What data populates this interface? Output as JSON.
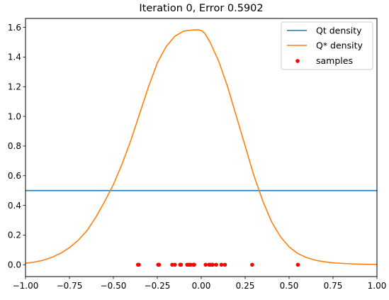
{
  "chart_data": {
    "type": "line",
    "title": "Iteration 0, Error 0.5902",
    "xlabel": "",
    "ylabel": "",
    "xlim": [
      -1.0,
      1.0
    ],
    "ylim": [
      -0.08,
      1.66
    ],
    "xticks": [
      -1.0,
      -0.75,
      -0.5,
      -0.25,
      0.0,
      0.25,
      0.5,
      0.75,
      1.0
    ],
    "xtick_labels": [
      "−1.00",
      "−0.75",
      "−0.50",
      "−0.25",
      "0.00",
      "0.25",
      "0.50",
      "0.75",
      "1.00"
    ],
    "yticks": [
      0.0,
      0.2,
      0.4,
      0.6,
      0.8,
      1.0,
      1.2,
      1.4,
      1.6
    ],
    "ytick_labels": [
      "0.0",
      "0.2",
      "0.4",
      "0.6",
      "0.8",
      "1.0",
      "1.2",
      "1.4",
      "1.6"
    ],
    "grid": false,
    "legend_position": "top-right",
    "series": [
      {
        "name": "Qt density",
        "kind": "line",
        "color": "#1f77b4",
        "x": [
          -1.0,
          1.0
        ],
        "y": [
          0.5,
          0.5
        ]
      },
      {
        "name": "Q* density",
        "kind": "line",
        "color": "#ff7f0e",
        "x": [
          -1.0,
          -0.95,
          -0.9,
          -0.85,
          -0.8,
          -0.75,
          -0.7,
          -0.65,
          -0.6,
          -0.55,
          -0.5,
          -0.45,
          -0.4,
          -0.35,
          -0.3,
          -0.25,
          -0.2,
          -0.15,
          -0.1,
          -0.05,
          -0.02,
          0.0,
          0.02,
          0.05,
          0.1,
          0.15,
          0.2,
          0.25,
          0.3,
          0.35,
          0.4,
          0.45,
          0.5,
          0.55,
          0.6,
          0.65,
          0.7,
          0.75,
          0.8,
          0.85,
          0.9,
          0.95,
          1.0
        ],
        "y": [
          0.01,
          0.018,
          0.03,
          0.05,
          0.077,
          0.115,
          0.165,
          0.23,
          0.32,
          0.425,
          0.54,
          0.68,
          0.84,
          1.02,
          1.2,
          1.36,
          1.47,
          1.54,
          1.575,
          1.582,
          1.584,
          1.578,
          1.56,
          1.5,
          1.37,
          1.2,
          1.0,
          0.8,
          0.6,
          0.43,
          0.29,
          0.19,
          0.12,
          0.075,
          0.048,
          0.03,
          0.02,
          0.013,
          0.009,
          0.006,
          0.004,
          0.003,
          0.002
        ]
      },
      {
        "name": "samples",
        "kind": "scatter",
        "color": "#ff0000",
        "x": [
          -0.36,
          -0.355,
          -0.245,
          -0.24,
          -0.165,
          -0.15,
          -0.12,
          -0.115,
          -0.08,
          -0.07,
          -0.06,
          -0.045,
          -0.04,
          0.025,
          0.045,
          0.055,
          0.065,
          0.085,
          0.115,
          0.135,
          0.29,
          0.55
        ],
        "y": [
          0.0,
          0.0,
          0.0,
          0.0,
          0.0,
          0.0,
          0.0,
          0.0,
          0.0,
          0.0,
          0.0,
          0.0,
          0.0,
          0.0,
          0.0,
          0.0,
          0.0,
          0.0,
          0.0,
          0.0,
          0.0,
          0.0
        ]
      }
    ]
  }
}
